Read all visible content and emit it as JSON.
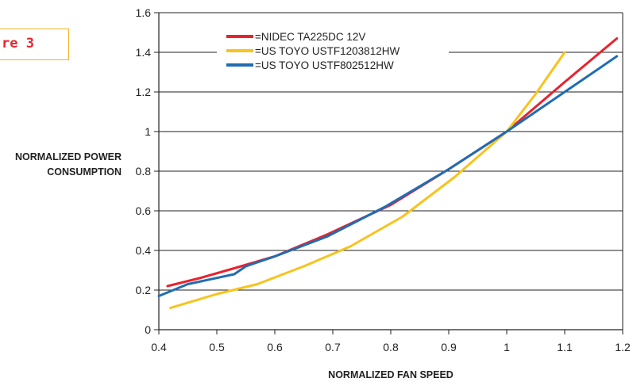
{
  "figure_label": "re 3",
  "chart_data": {
    "type": "line",
    "title": "",
    "xlabel": "NORMALIZED FAN SPEED",
    "ylabel": [
      "NORMALIZED POWER",
      "CONSUMPTION"
    ],
    "xlim": [
      0.4,
      1.2
    ],
    "ylim": [
      0,
      1.6
    ],
    "xticks": [
      "0.4",
      "0.5",
      "0.6",
      "0.7",
      "0.8",
      "0.9",
      "1",
      "1.1",
      "1.2"
    ],
    "yticks": [
      "0",
      "0.2",
      "0.4",
      "0.6",
      "0.8",
      "1",
      "1.2",
      "1.4",
      "1.6"
    ],
    "grid": "horizontal",
    "legend_position": "top-left",
    "series": [
      {
        "name": "=NIDEC TA225DC 12V",
        "color": "#e8232e",
        "points": [
          [
            0.415,
            0.22
          ],
          [
            0.47,
            0.26
          ],
          [
            0.53,
            0.31
          ],
          [
            0.6,
            0.37
          ],
          [
            0.69,
            0.48
          ],
          [
            0.8,
            0.63
          ],
          [
            0.9,
            0.81
          ],
          [
            1.0,
            1.0
          ],
          [
            1.1,
            1.25
          ],
          [
            1.19,
            1.47
          ]
        ]
      },
      {
        "name": "=US TOYO USTF1203812HW",
        "color": "#f7c31d",
        "points": [
          [
            0.42,
            0.11
          ],
          [
            0.5,
            0.18
          ],
          [
            0.57,
            0.23
          ],
          [
            0.65,
            0.32
          ],
          [
            0.73,
            0.42
          ],
          [
            0.82,
            0.57
          ],
          [
            0.91,
            0.77
          ],
          [
            1.0,
            1.0
          ],
          [
            1.05,
            1.19
          ],
          [
            1.1,
            1.4
          ]
        ]
      },
      {
        "name": "=US TOYO USTF802512HW",
        "color": "#1f6db3",
        "points": [
          [
            0.4,
            0.17
          ],
          [
            0.45,
            0.23
          ],
          [
            0.53,
            0.28
          ],
          [
            0.55,
            0.32
          ],
          [
            0.6,
            0.37
          ],
          [
            0.69,
            0.47
          ],
          [
            0.79,
            0.62
          ],
          [
            0.9,
            0.81
          ],
          [
            1.0,
            1.0
          ],
          [
            1.1,
            1.2
          ],
          [
            1.19,
            1.38
          ]
        ]
      }
    ]
  }
}
